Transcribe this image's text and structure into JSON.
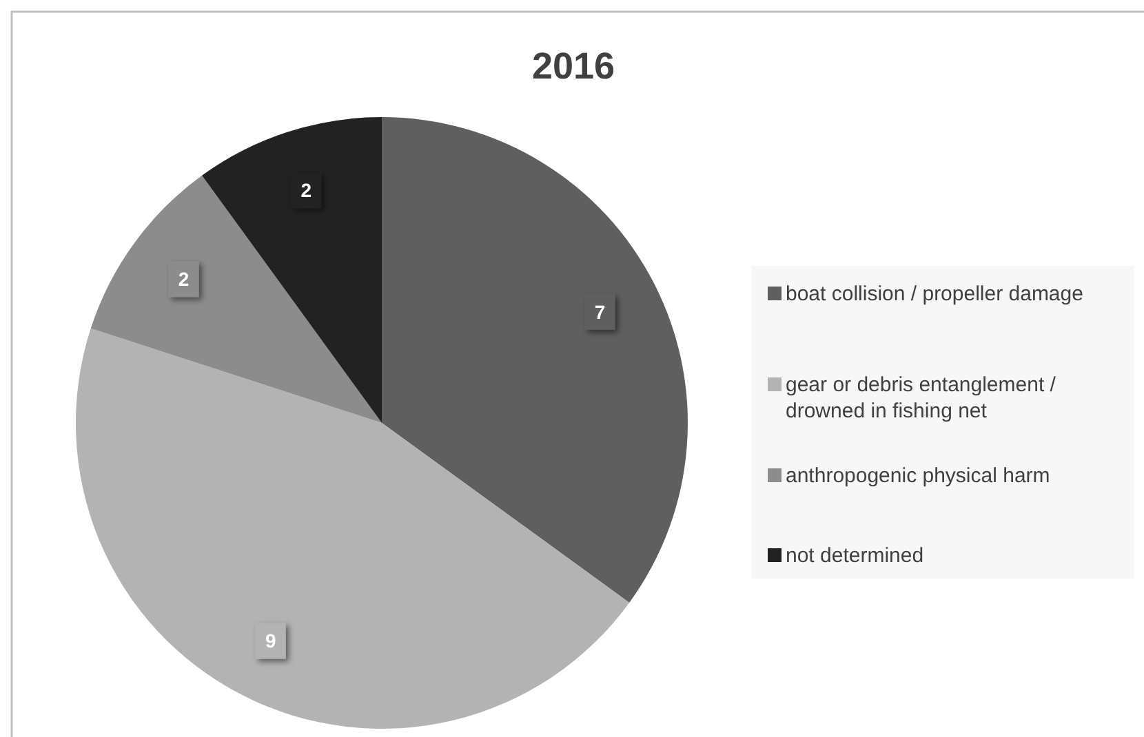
{
  "chart_data": {
    "type": "pie",
    "title": "2016",
    "categories": [
      "boat collision / propeller damage",
      "gear or debris entanglement / drowned in fishing net",
      "anthropogenic physical harm",
      "not determined"
    ],
    "values": [
      7,
      9,
      2,
      2
    ],
    "colors": [
      "#5f5f5f",
      "#b3b3b3",
      "#8c8c8c",
      "#222222"
    ],
    "data_labels": true,
    "legend": "right"
  }
}
